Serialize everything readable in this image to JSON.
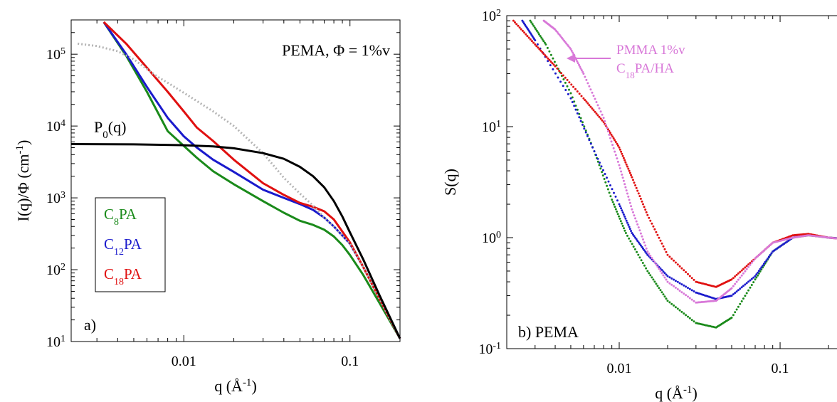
{
  "chart_data": [
    {
      "type": "line",
      "panel_label": "a)",
      "annotation": "PEMA, Φ = 1%v",
      "ylabel": {
        "main": "I(q)/Φ (cm",
        "sup": "-1",
        "tail": ")"
      },
      "xlabel": {
        "main": "q (Å",
        "sup": "-1",
        "tail": ")"
      },
      "xscale": "log",
      "yscale": "log",
      "xlim": [
        0.0021,
        0.2
      ],
      "ylim": [
        10,
        300000
      ],
      "xticks": [
        {
          "value": 0.01,
          "label": "0.01"
        },
        {
          "value": 0.1,
          "label": "0.1"
        }
      ],
      "yticks": [
        {
          "value": 10,
          "base": "10",
          "exp": "1"
        },
        {
          "value": 100,
          "base": "10",
          "exp": "2"
        },
        {
          "value": 1000,
          "base": "10",
          "exp": "3"
        },
        {
          "value": 10000,
          "base": "10",
          "exp": "4"
        },
        {
          "value": 100000,
          "base": "10",
          "exp": "5"
        }
      ],
      "legend": {
        "placement": "left",
        "entries": [
          {
            "pre": "C",
            "sub": "8",
            "post": "PA",
            "color": "#1a8a1a"
          },
          {
            "pre": "C",
            "sub": "12",
            "post": "PA",
            "color": "#1a1acc"
          },
          {
            "pre": "C",
            "sub": "18",
            "post": "PA",
            "color": "#e01010"
          }
        ]
      },
      "curve_label": {
        "pre": "P",
        "sub": "0",
        "post": "(q)"
      },
      "series": [
        {
          "id": "C8PA",
          "color": "#1a8a1a",
          "style": "solid",
          "points": [
            [
              0.0033,
              280000
            ],
            [
              0.0045,
              95000
            ],
            [
              0.006,
              30000
            ],
            [
              0.008,
              8500
            ],
            [
              0.01,
              5300
            ],
            [
              0.012,
              3600
            ],
            [
              0.015,
              2350
            ],
            [
              0.02,
              1550
            ],
            [
              0.03,
              900
            ],
            [
              0.04,
              620
            ],
            [
              0.05,
              480
            ],
            [
              0.06,
              420
            ],
            [
              0.07,
              360
            ],
            [
              0.08,
              290
            ],
            [
              0.09,
              220
            ],
            [
              0.1,
              160
            ],
            [
              0.12,
              85
            ],
            [
              0.15,
              35
            ],
            [
              0.2,
              11
            ]
          ]
        },
        {
          "id": "C12PA",
          "color": "#1a1acc",
          "style": "solid",
          "points": [
            [
              0.0033,
              280000
            ],
            [
              0.0045,
              100000
            ],
            [
              0.006,
              35000
            ],
            [
              0.008,
              13000
            ],
            [
              0.01,
              7200
            ],
            [
              0.012,
              5000
            ],
            [
              0.015,
              3400
            ],
            [
              0.02,
              2300
            ],
            [
              0.03,
              1300
            ],
            [
              0.04,
              1000
            ],
            [
              0.05,
              820
            ],
            [
              0.06,
              680
            ],
            [
              0.07,
              530
            ],
            [
              0.08,
              400
            ],
            [
              0.1,
              230
            ],
            [
              0.12,
              110
            ],
            [
              0.15,
              40
            ],
            [
              0.2,
              11
            ]
          ]
        },
        {
          "id": "C18PA",
          "color": "#e01010",
          "style": "solid",
          "points": [
            [
              0.0033,
              280000
            ],
            [
              0.0045,
              140000
            ],
            [
              0.006,
              65000
            ],
            [
              0.008,
              30000
            ],
            [
              0.01,
              16000
            ],
            [
              0.012,
              9500
            ],
            [
              0.015,
              6200
            ],
            [
              0.02,
              3400
            ],
            [
              0.03,
              1600
            ],
            [
              0.04,
              1100
            ],
            [
              0.05,
              850
            ],
            [
              0.06,
              750
            ],
            [
              0.07,
              650
            ],
            [
              0.08,
              500
            ],
            [
              0.1,
              240
            ],
            [
              0.12,
              110
            ],
            [
              0.15,
              40
            ],
            [
              0.2,
              11
            ]
          ]
        },
        {
          "id": "PMMA-ref",
          "color": "#b4b4b4",
          "style": "dotted-solid",
          "points": [
            [
              0.0023,
              140000
            ],
            [
              0.003,
              130000
            ],
            [
              0.004,
              110000
            ],
            [
              0.005,
              85000
            ],
            [
              0.006,
              62000
            ],
            [
              0.007,
              48000
            ],
            [
              0.008,
              40000
            ],
            [
              0.01,
              29000
            ],
            [
              0.015,
              16000
            ],
            [
              0.02,
              10000
            ],
            [
              0.03,
              4200
            ],
            [
              0.04,
              1900
            ],
            [
              0.05,
              1150
            ],
            [
              0.06,
              780
            ],
            [
              0.07,
              530
            ],
            [
              0.08,
              400
            ],
            [
              0.1,
              230
            ],
            [
              0.12,
              110
            ],
            [
              0.15,
              40
            ],
            [
              0.2,
              11
            ]
          ]
        },
        {
          "id": "P0",
          "color": "#000000",
          "style": "solid",
          "points": [
            [
              0.0021,
              5600
            ],
            [
              0.005,
              5550
            ],
            [
              0.01,
              5400
            ],
            [
              0.015,
              5200
            ],
            [
              0.02,
              4900
            ],
            [
              0.03,
              4200
            ],
            [
              0.04,
              3500
            ],
            [
              0.05,
              2700
            ],
            [
              0.06,
              2000
            ],
            [
              0.07,
              1400
            ],
            [
              0.08,
              900
            ],
            [
              0.09,
              550
            ],
            [
              0.1,
              330
            ],
            [
              0.12,
              140
            ],
            [
              0.15,
              45
            ],
            [
              0.2,
              11
            ]
          ]
        }
      ]
    },
    {
      "type": "scatter",
      "panel_label": "b) PEMA",
      "annotation": {
        "line1": "PMMA 1%v",
        "line2_pre": "C",
        "line2_sub": "18",
        "line2_post": "PA/HA",
        "color": "#d878d8"
      },
      "ylabel": {
        "main": "S(q)"
      },
      "xlabel": {
        "main": "q (Å",
        "sup": "-1",
        "tail": ")"
      },
      "xscale": "log",
      "yscale": "log",
      "xlim": [
        0.002,
        0.25
      ],
      "ylim": [
        0.1,
        100
      ],
      "xticks": [
        {
          "value": 0.01,
          "label": "0.01"
        },
        {
          "value": 0.1,
          "label": "0.1"
        }
      ],
      "yticks": [
        {
          "value": 0.1,
          "base": "10",
          "exp": "-1"
        },
        {
          "value": 1,
          "base": "10",
          "exp": "0"
        },
        {
          "value": 10,
          "base": "10",
          "exp": "1"
        },
        {
          "value": 100,
          "base": "10",
          "exp": "2"
        }
      ],
      "series": [
        {
          "id": "C8PA",
          "color": "#1a8a1a",
          "points": [
            [
              0.0028,
              90
            ],
            [
              0.0035,
              55
            ],
            [
              0.005,
              20
            ],
            [
              0.007,
              6
            ],
            [
              0.009,
              2.2
            ],
            [
              0.011,
              1.1
            ],
            [
              0.015,
              0.5
            ],
            [
              0.02,
              0.27
            ],
            [
              0.03,
              0.17
            ],
            [
              0.04,
              0.155
            ],
            [
              0.05,
              0.19
            ],
            [
              0.07,
              0.42
            ],
            [
              0.09,
              0.75
            ],
            [
              0.12,
              1.0
            ],
            [
              0.15,
              1.05
            ],
            [
              0.2,
              1.0
            ],
            [
              0.25,
              0.98
            ]
          ]
        },
        {
          "id": "C12PA",
          "color": "#1a1acc",
          "points": [
            [
              0.0025,
              90
            ],
            [
              0.003,
              60
            ],
            [
              0.005,
              18
            ],
            [
              0.007,
              6
            ],
            [
              0.01,
              2
            ],
            [
              0.012,
              1.1
            ],
            [
              0.015,
              0.7
            ],
            [
              0.02,
              0.45
            ],
            [
              0.03,
              0.32
            ],
            [
              0.04,
              0.28
            ],
            [
              0.05,
              0.3
            ],
            [
              0.07,
              0.45
            ],
            [
              0.09,
              0.75
            ],
            [
              0.12,
              1.0
            ],
            [
              0.15,
              1.07
            ],
            [
              0.2,
              1.0
            ],
            [
              0.25,
              0.98
            ]
          ]
        },
        {
          "id": "C18PA",
          "color": "#e01010",
          "points": [
            [
              0.0022,
              90
            ],
            [
              0.003,
              55
            ],
            [
              0.004,
              35
            ],
            [
              0.006,
              18
            ],
            [
              0.008,
              11
            ],
            [
              0.01,
              6.5
            ],
            [
              0.012,
              3.5
            ],
            [
              0.015,
              1.6
            ],
            [
              0.02,
              0.7
            ],
            [
              0.03,
              0.4
            ],
            [
              0.04,
              0.36
            ],
            [
              0.05,
              0.42
            ],
            [
              0.07,
              0.65
            ],
            [
              0.09,
              0.9
            ],
            [
              0.12,
              1.05
            ],
            [
              0.15,
              1.08
            ],
            [
              0.2,
              1.0
            ],
            [
              0.25,
              0.97
            ]
          ]
        },
        {
          "id": "PMMA-C18PA/HA",
          "color": "#d878d8",
          "points": [
            [
              0.0034,
              90
            ],
            [
              0.004,
              75
            ],
            [
              0.005,
              50
            ],
            [
              0.006,
              30
            ],
            [
              0.008,
              12
            ],
            [
              0.01,
              4.5
            ],
            [
              0.012,
              1.8
            ],
            [
              0.015,
              0.75
            ],
            [
              0.02,
              0.4
            ],
            [
              0.03,
              0.26
            ],
            [
              0.04,
              0.27
            ],
            [
              0.05,
              0.35
            ],
            [
              0.07,
              0.65
            ],
            [
              0.09,
              0.9
            ],
            [
              0.12,
              1.0
            ],
            [
              0.15,
              1.05
            ],
            [
              0.2,
              1.0
            ],
            [
              0.25,
              0.97
            ]
          ]
        }
      ]
    }
  ]
}
